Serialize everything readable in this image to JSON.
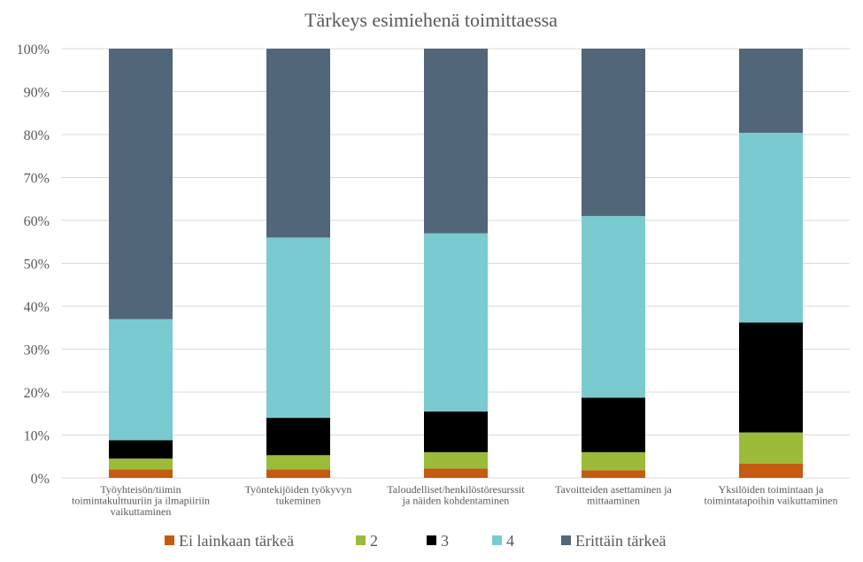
{
  "chart_data": {
    "type": "bar",
    "stacked": true,
    "percent": true,
    "title": "Tärkeys esimiehenä toimittaessa",
    "ylim": [
      0,
      100
    ],
    "yticks": [
      "0%",
      "10%",
      "20%",
      "30%",
      "40%",
      "50%",
      "60%",
      "70%",
      "80%",
      "90%",
      "100%"
    ],
    "grid": true,
    "legend_position": "bottom",
    "categories": [
      [
        "Työyhteisön/tiimin",
        "toimintakulttuuriin ja ilmapiiriin",
        "vaikuttaminen"
      ],
      [
        "Työntekijöiden työkyvyn",
        "tukeminen"
      ],
      [
        "Taloudelliset/henkilöstöresurssit",
        "ja näiden kohdentaminen"
      ],
      [
        "Tavoitteiden asettaminen ja",
        "mittaaminen"
      ],
      [
        "Yksilöiden toimintaan ja",
        "toimintatapoihin vaikuttaminen"
      ]
    ],
    "series": [
      {
        "name": "Ei lainkaan tärkeä",
        "color": "#c55a11",
        "values": [
          2,
          2,
          2.2,
          1.8,
          3.3
        ]
      },
      {
        "name": "2",
        "color": "#9bbb3a",
        "values": [
          2.5,
          3.3,
          3.8,
          4.2,
          7.3
        ]
      },
      {
        "name": "3",
        "color": "#000000",
        "values": [
          4.3,
          8.7,
          9.5,
          12.7,
          25.6
        ]
      },
      {
        "name": "4",
        "color": "#7acbd0",
        "values": [
          28.2,
          42,
          41.5,
          42.3,
          44.2
        ]
      },
      {
        "name": "Erittäin tärkeä",
        "color": "#526679",
        "values": [
          63,
          44,
          43,
          39,
          19.6
        ]
      }
    ]
  }
}
